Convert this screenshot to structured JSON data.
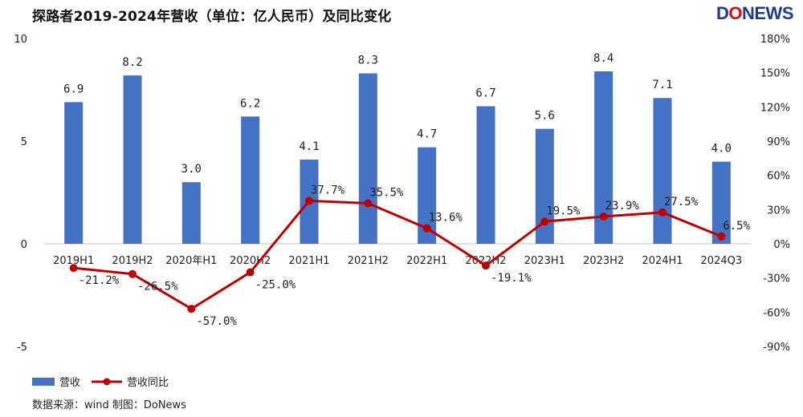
{
  "title": "探路者2019-2024年营收（单位：亿人民币）及同比变化",
  "logo": {
    "d": "D",
    "o": "O",
    "rest": "NEWS"
  },
  "source": "数据来源：wind  制图：DoNews",
  "colors": {
    "bar": "#4472c4",
    "line": "#c00000"
  },
  "chart_data": {
    "type": "bar",
    "categories": [
      "2019H1",
      "2019H2",
      "2020年H1",
      "2020H2",
      "2021H1",
      "2021H2",
      "2022H1",
      "2022H2",
      "2023H1",
      "2023H2",
      "2024H1",
      "2024Q3"
    ],
    "series": [
      {
        "name": "营收",
        "type": "bar",
        "axis": "left",
        "values": [
          6.9,
          8.2,
          3.0,
          6.2,
          4.1,
          8.3,
          4.7,
          6.7,
          5.6,
          8.4,
          7.1,
          4.0
        ],
        "labels": [
          "6.9",
          "8.2",
          "3.0",
          "6.2",
          "4.1",
          "8.3",
          "4.7",
          "6.7",
          "5.6",
          "8.4",
          "7.1",
          "4.0"
        ]
      },
      {
        "name": "营收同比",
        "type": "line",
        "axis": "right",
        "values": [
          -21.2,
          -26.5,
          -57.0,
          -25.0,
          37.7,
          35.5,
          13.6,
          -19.1,
          19.5,
          23.9,
          27.5,
          6.5
        ],
        "labels": [
          "-21.2%",
          "-26.5%",
          "-57.0%",
          "-25.0%",
          "37.7%",
          "35.5%",
          "13.6%",
          "-19.1%",
          "19.5%",
          "23.9%",
          "27.5%",
          "6.5%"
        ]
      }
    ],
    "y_left": {
      "min": -5,
      "max": 10,
      "ticks": [
        10,
        5,
        0,
        -5
      ],
      "tick_labels": [
        "10",
        "5",
        "0",
        "-5"
      ]
    },
    "y_right": {
      "min": -90,
      "max": 180,
      "ticks": [
        180,
        150,
        120,
        90,
        60,
        30,
        0,
        -30,
        -60,
        -90
      ],
      "tick_labels": [
        "180%",
        "150%",
        "120%",
        "90%",
        "60%",
        "30%",
        "0%",
        "-30%",
        "-60%",
        "-90%"
      ]
    },
    "grid": false,
    "legend_position": "bottom-left"
  }
}
